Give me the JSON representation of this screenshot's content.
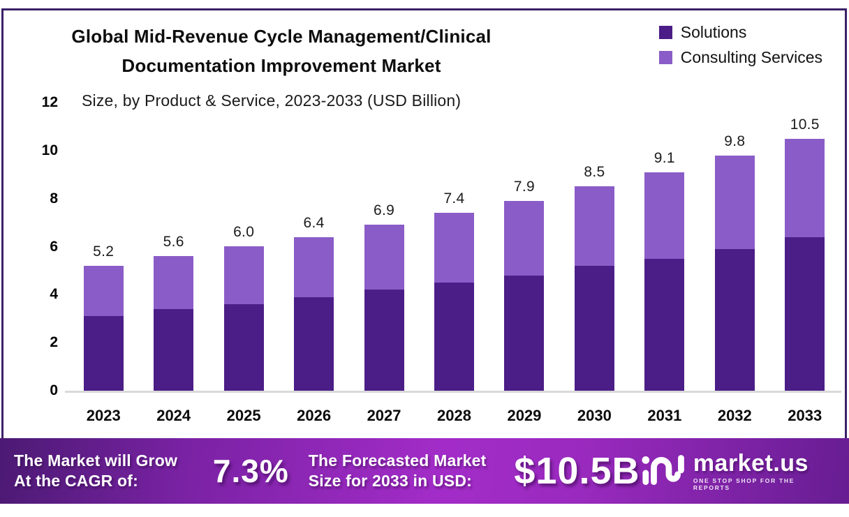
{
  "chart": {
    "title_line1": "Global Mid-Revenue Cycle Management/Clinical",
    "title_line2": "Documentation Improvement Market",
    "subtitle": "Size, by Product & Service, 2023-2033 (USD Billion)"
  },
  "chart_data": {
    "type": "bar",
    "stacked": true,
    "title": "Global Mid-Revenue Cycle Management/Clinical Documentation Improvement Market",
    "subtitle": "Size, by Product & Service, 2023-2033 (USD Billion)",
    "categories": [
      "2023",
      "2024",
      "2025",
      "2026",
      "2027",
      "2028",
      "2029",
      "2030",
      "2031",
      "2032",
      "2033"
    ],
    "series": [
      {
        "name": "Solutions",
        "color": "#4b1d87",
        "values": [
          3.1,
          3.4,
          3.6,
          3.9,
          4.2,
          4.5,
          4.8,
          5.2,
          5.5,
          5.9,
          6.4
        ]
      },
      {
        "name": "Consulting Services",
        "color": "#8a5cc8",
        "values": [
          2.1,
          2.2,
          2.4,
          2.5,
          2.7,
          2.9,
          3.1,
          3.3,
          3.6,
          3.9,
          4.1
        ]
      }
    ],
    "total_labels": [
      "5.2",
      "5.6",
      "6.0",
      "6.4",
      "6.9",
      "7.4",
      "7.9",
      "8.5",
      "9.1",
      "9.8",
      "10.5"
    ],
    "ylim": [
      0,
      12
    ],
    "yticks": [
      0,
      2,
      4,
      6,
      8,
      10,
      12
    ],
    "grid": false,
    "legend_position": "top-right",
    "unit": "USD Billion"
  },
  "banner": {
    "cagr_label_line1": "The Market will Grow",
    "cagr_label_line2": "At the CAGR of:",
    "cagr_value": "7.3%",
    "forecast_label_line1": "The Forecasted Market",
    "forecast_label_line2": "Size for 2033 in USD:",
    "forecast_value": "$10.5B",
    "brand_name": "market.us",
    "brand_tagline": "ONE STOP SHOP FOR THE REPORTS"
  },
  "colors": {
    "frame_border": "#3b2169",
    "solutions": "#4b1d87",
    "consulting": "#8a5cc8",
    "banner_gradient_start": "#4b1a73",
    "banner_gradient_mid": "#a32cc8",
    "banner_gradient_end": "#671d92",
    "baseline": "#d9d9d9"
  }
}
